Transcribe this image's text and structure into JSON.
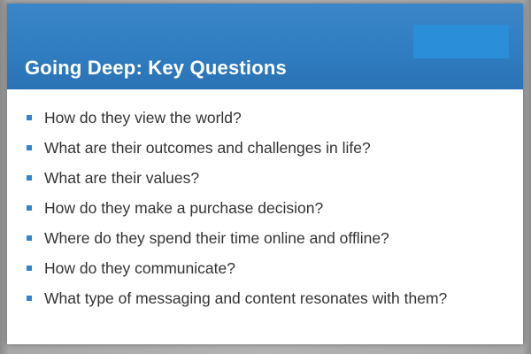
{
  "slide": {
    "title": "Going Deep: Key Questions",
    "bullets": [
      "How do they view the world?",
      "What are their outcomes and challenges in life?",
      "What are their values?",
      "How do they make a purchase decision?",
      "Where do they spend their time online and offline?",
      "How do they communicate?",
      "What type of messaging and content resonates with them?"
    ]
  },
  "colors": {
    "header": "#2f7cc0",
    "accent": "#2a8ed8",
    "bullet": "#2f86cf",
    "text": "#333333"
  }
}
